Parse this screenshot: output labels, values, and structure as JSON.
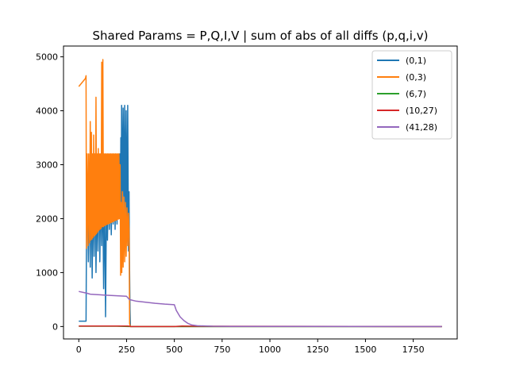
{
  "chart_data": {
    "type": "line",
    "title": "Shared Params = P,Q,I,V | sum of abs of all diffs (p,q,i,v)",
    "xlabel": "",
    "ylabel": "",
    "xlim": [
      -80,
      1980
    ],
    "ylim": [
      -230,
      5200
    ],
    "xticks": [
      0,
      250,
      500,
      750,
      1000,
      1250,
      1500,
      1750
    ],
    "yticks": [
      0,
      1000,
      2000,
      3000,
      4000,
      5000
    ],
    "grid": false,
    "legend_position": "top-right",
    "series": [
      {
        "name": "(0,1)",
        "color": "#1f77b4",
        "points": [
          [
            0,
            100
          ],
          [
            38,
            100
          ],
          [
            40,
            1500
          ],
          [
            45,
            2500
          ],
          [
            50,
            1200
          ],
          [
            55,
            2900
          ],
          [
            60,
            1100
          ],
          [
            65,
            2700
          ],
          [
            70,
            900
          ],
          [
            75,
            2600
          ],
          [
            80,
            1300
          ],
          [
            85,
            2800
          ],
          [
            90,
            1000
          ],
          [
            95,
            2500
          ],
          [
            100,
            1400
          ],
          [
            105,
            2900
          ],
          [
            110,
            1200
          ],
          [
            115,
            2600
          ],
          [
            120,
            1500
          ],
          [
            125,
            2700
          ],
          [
            130,
            700
          ],
          [
            135,
            2500
          ],
          [
            140,
            180
          ],
          [
            145,
            2400
          ],
          [
            150,
            1600
          ],
          [
            155,
            2600
          ],
          [
            160,
            1800
          ],
          [
            165,
            2800
          ],
          [
            170,
            1700
          ],
          [
            175,
            2700
          ],
          [
            180,
            1900
          ],
          [
            185,
            3000
          ],
          [
            190,
            1800
          ],
          [
            195,
            3000
          ],
          [
            200,
            1900
          ],
          [
            205,
            2900
          ],
          [
            210,
            2300
          ],
          [
            215,
            3200
          ],
          [
            218,
            2000
          ],
          [
            220,
            3500
          ],
          [
            222,
            2200
          ],
          [
            224,
            4100
          ],
          [
            228,
            2200
          ],
          [
            232,
            4050
          ],
          [
            236,
            2000
          ],
          [
            240,
            4100
          ],
          [
            244,
            1900
          ],
          [
            248,
            4000
          ],
          [
            252,
            1600
          ],
          [
            256,
            4100
          ],
          [
            260,
            1400
          ],
          [
            263,
            2500
          ],
          [
            265,
            1300
          ],
          [
            268,
            300
          ],
          [
            270,
            0
          ],
          [
            1900,
            0
          ]
        ]
      },
      {
        "name": "(0,3)",
        "color": "#ff7f0e",
        "points": [
          [
            0,
            4450
          ],
          [
            35,
            4600
          ],
          [
            38,
            4650
          ],
          [
            40,
            1450
          ],
          [
            44,
            3200
          ],
          [
            48,
            1500
          ],
          [
            52,
            3200
          ],
          [
            56,
            1550
          ],
          [
            60,
            3800
          ],
          [
            63,
            1600
          ],
          [
            66,
            3600
          ],
          [
            69,
            1620
          ],
          [
            72,
            3200
          ],
          [
            75,
            1650
          ],
          [
            78,
            3550
          ],
          [
            81,
            1680
          ],
          [
            84,
            3200
          ],
          [
            87,
            1700
          ],
          [
            90,
            4250
          ],
          [
            93,
            1720
          ],
          [
            96,
            3200
          ],
          [
            99,
            1750
          ],
          [
            102,
            3300
          ],
          [
            105,
            1780
          ],
          [
            108,
            3200
          ],
          [
            111,
            1800
          ],
          [
            114,
            3200
          ],
          [
            117,
            1820
          ],
          [
            120,
            4900
          ],
          [
            123,
            1850
          ],
          [
            126,
            4950
          ],
          [
            129,
            1850
          ],
          [
            132,
            3200
          ],
          [
            135,
            1870
          ],
          [
            138,
            3200
          ],
          [
            141,
            1880
          ],
          [
            144,
            3200
          ],
          [
            147,
            1890
          ],
          [
            150,
            3200
          ],
          [
            153,
            1900
          ],
          [
            156,
            3200
          ],
          [
            159,
            1910
          ],
          [
            162,
            3200
          ],
          [
            165,
            1920
          ],
          [
            168,
            3200
          ],
          [
            171,
            1930
          ],
          [
            174,
            3200
          ],
          [
            177,
            1940
          ],
          [
            180,
            3200
          ],
          [
            183,
            1950
          ],
          [
            186,
            3200
          ],
          [
            189,
            1960
          ],
          [
            192,
            3200
          ],
          [
            195,
            1970
          ],
          [
            198,
            3200
          ],
          [
            201,
            1980
          ],
          [
            204,
            3200
          ],
          [
            207,
            1990
          ],
          [
            210,
            3200
          ],
          [
            213,
            2000
          ],
          [
            216,
            3000
          ],
          [
            219,
            950
          ],
          [
            222,
            2300
          ],
          [
            225,
            1000
          ],
          [
            228,
            2500
          ],
          [
            232,
            1100
          ],
          [
            236,
            2400
          ],
          [
            240,
            1200
          ],
          [
            244,
            2300
          ],
          [
            248,
            1300
          ],
          [
            252,
            2200
          ],
          [
            256,
            1500
          ],
          [
            260,
            2100
          ],
          [
            263,
            1800
          ],
          [
            266,
            50
          ],
          [
            270,
            0
          ],
          [
            1900,
            0
          ]
        ]
      },
      {
        "name": "(6,7)",
        "color": "#2ca02c",
        "points": [
          [
            0,
            5
          ],
          [
            200,
            5
          ],
          [
            260,
            0
          ],
          [
            1900,
            0
          ]
        ]
      },
      {
        "name": "(10,27)",
        "color": "#d62728",
        "points": [
          [
            0,
            10
          ],
          [
            260,
            10
          ],
          [
            270,
            0
          ],
          [
            500,
            0
          ],
          [
            540,
            10
          ],
          [
            620,
            5
          ],
          [
            1900,
            0
          ]
        ]
      },
      {
        "name": "(41,28)",
        "color": "#9467bd",
        "points": [
          [
            0,
            650
          ],
          [
            40,
            620
          ],
          [
            60,
            600
          ],
          [
            100,
            590
          ],
          [
            150,
            580
          ],
          [
            200,
            570
          ],
          [
            250,
            560
          ],
          [
            265,
            500
          ],
          [
            300,
            470
          ],
          [
            350,
            450
          ],
          [
            400,
            430
          ],
          [
            450,
            415
          ],
          [
            500,
            405
          ],
          [
            510,
            300
          ],
          [
            530,
            180
          ],
          [
            550,
            110
          ],
          [
            570,
            60
          ],
          [
            590,
            30
          ],
          [
            620,
            15
          ],
          [
            700,
            5
          ],
          [
            800,
            2
          ],
          [
            1900,
            0
          ]
        ]
      }
    ]
  }
}
